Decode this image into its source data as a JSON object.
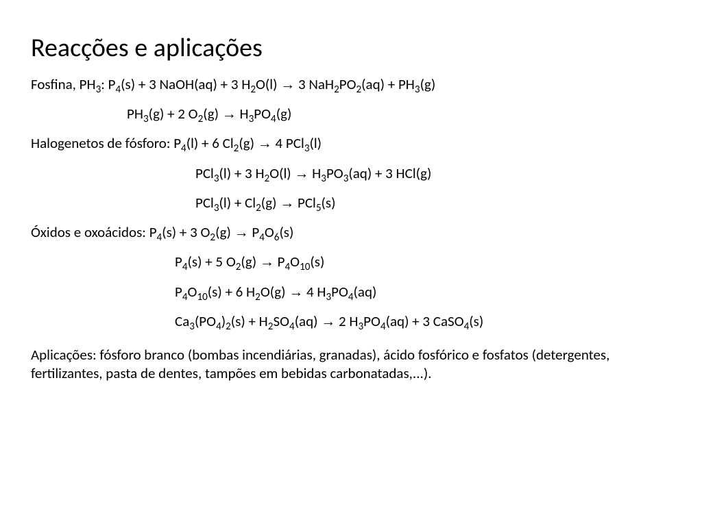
{
  "typography": {
    "title_fontsize_pt": 28,
    "body_fontsize_pt": 16,
    "font_family": "Calibri",
    "text_color": "#000000",
    "background_color": "#ffffff"
  },
  "title": "Reacções e aplicações",
  "sections": [
    {
      "label": "Fosfina, PH3:",
      "label_html": "Fosfina, PH<sub>3</sub>: ",
      "equations": [
        {
          "indent": 0,
          "html": "P<sub>4</sub>(s) + 3 NaOH(aq) + 3 H<sub>2</sub>O(l) <span class='arrow'>→</span> 3 NaH<sub>2</sub>PO<sub>2</sub>(aq) + PH<sub>3</sub>(g)"
        },
        {
          "indent": 1,
          "html": "PH<sub>3</sub>(g) + 2 O<sub>2</sub>(g) <span class='arrow'>→</span> H<sub>3</sub>PO<sub>4</sub>(g)"
        }
      ]
    },
    {
      "label": "Halogenetos de fósforo:",
      "label_html": "Halogenetos de fósforo: ",
      "equations": [
        {
          "indent": 0,
          "html": "P<sub>4</sub>(l) + 6 Cl<sub>2</sub>(g) <span class='arrow'>→</span> 4 PCl<sub>3</sub>(l)"
        },
        {
          "indent": 2,
          "html": "PCl<sub>3</sub>(l) + 3 H<sub>2</sub>O(l) <span class='arrow'>→</span> H<sub>3</sub>PO<sub>3</sub>(aq) + 3 HCl(g)"
        },
        {
          "indent": 2,
          "html": "PCl<sub>3</sub>(l) + Cl<sub>2</sub>(g) <span class='arrow'>→</span> PCl<sub>5</sub>(s)"
        }
      ]
    },
    {
      "label": "Óxidos e oxoácidos:",
      "label_html": "Óxidos e oxoácidos: ",
      "equations": [
        {
          "indent": 0,
          "html": "P<sub>4</sub>(s) + 3 O<sub>2</sub>(g) <span class='arrow'>→</span> P<sub>4</sub>O<sub>6</sub>(s)"
        },
        {
          "indent": 3,
          "html": "P<sub>4</sub>(s) + 5 O<sub>2</sub>(g) <span class='arrow'>→</span> P<sub>4</sub>O<sub>10</sub>(s)"
        },
        {
          "indent": 3,
          "html": "P<sub>4</sub>O<sub>10</sub>(s) + 6 H<sub>2</sub>O(g) <span class='arrow'>→</span> 4 H<sub>3</sub>PO<sub>4</sub>(aq)"
        },
        {
          "indent": 3,
          "html": "Ca<sub>3</sub>(PO<sub>4</sub>)<sub>2</sub>(s) + H<sub>2</sub>SO<sub>4</sub>(aq) <span class='arrow'>→</span> 2 H<sub>3</sub>PO<sub>4</sub>(aq) + 3 CaSO<sub>4</sub>(s)"
        }
      ]
    }
  ],
  "applications": "Aplicações: fósforo branco (bombas incendiárias, granadas), ácido fosfórico e fosfatos (detergentes, fertilizantes, pasta de dentes, tampões em bebidas carbonatadas,...)."
}
